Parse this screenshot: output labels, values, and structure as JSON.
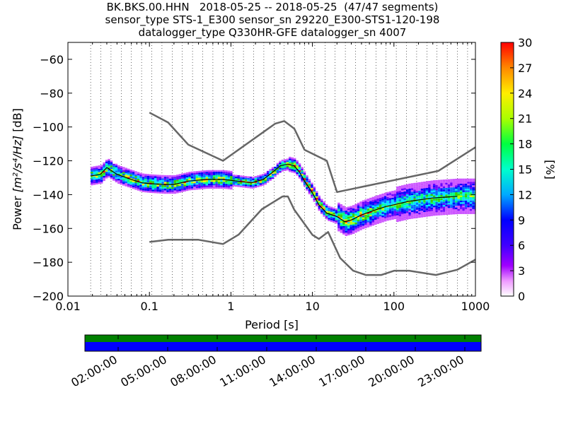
{
  "chart_data": [
    {
      "type": "heatmap",
      "title_lines": [
        "BK.BKS.00.HHN   2018-05-25 -- 2018-05-25  (47/47 segments)",
        "sensor_type STS-1_E300 sensor_sn 29220_E300-STS1-120-198",
        "datalogger_type Q330HR-GFE datalogger_sn 4007"
      ],
      "xlabel": "Period [s]",
      "ylabel_main": "Power ",
      "ylabel_units": "[m²/s⁴/Hz]",
      "ylabel_tail": " [dB]",
      "xscale": "log",
      "xlim": [
        0.01,
        1000
      ],
      "ylim": [
        -200,
        -50
      ],
      "xtick_values": [
        0.01,
        0.1,
        1,
        10,
        100,
        1000
      ],
      "xtick_labels": [
        "0.01",
        "0.1",
        "1",
        "10",
        "100",
        "1000"
      ],
      "ytick_values": [
        -200,
        -180,
        -160,
        -140,
        -120,
        -100,
        -80,
        -60
      ],
      "ytick_labels": [
        "−200",
        "−180",
        "−160",
        "−140",
        "−120",
        "−100",
        "−80",
        "−60"
      ],
      "grid": "dotted vertical grid at each period column",
      "colorbar": {
        "label": "[%]",
        "range": [
          0,
          30
        ],
        "tick_values": [
          0,
          3,
          6,
          9,
          12,
          15,
          18,
          21,
          24,
          27,
          30
        ],
        "tick_labels": [
          "0",
          "3",
          "6",
          "9",
          "12",
          "15",
          "18",
          "21",
          "24",
          "27",
          "30"
        ],
        "colors": [
          "#ffffff",
          "#cc55ff",
          "#6a00ff",
          "#0000ff",
          "#0066ff",
          "#00e0ff",
          "#00ff80",
          "#30d000",
          "#b8ff00",
          "#ffee00",
          "#ff7f00",
          "#ff0000"
        ]
      },
      "high_noise_model": {
        "periods": [
          0.1,
          0.17,
          0.3,
          0.8,
          3.5,
          4.5,
          6,
          8,
          15,
          20,
          350,
          1000
        ],
        "db": [
          -91.5,
          -97.4,
          -110.5,
          -120,
          -98,
          -96.5,
          -101,
          -113.5,
          -120,
          -138.5,
          -126,
          -112
        ]
      },
      "low_noise_model": {
        "periods": [
          0.1,
          0.17,
          0.4,
          0.8,
          1.24,
          2.4,
          4.3,
          5,
          6,
          10,
          12,
          15.6,
          21.9,
          31.6,
          45,
          70,
          101,
          154,
          328,
          600,
          1000
        ],
        "db": [
          -168,
          -166.7,
          -166.7,
          -169.2,
          -163.7,
          -148.6,
          -141.1,
          -141.1,
          -149,
          -163.8,
          -166.2,
          -162.1,
          -177.5,
          -185,
          -187.5,
          -187.5,
          -185,
          -185,
          -187.5,
          -184.4,
          -178.4
        ]
      },
      "mode_curve": {
        "periods": [
          0.019,
          0.025,
          0.03,
          0.04,
          0.06,
          0.08,
          0.1,
          0.15,
          0.2,
          0.3,
          0.5,
          0.8,
          1.2,
          1.8,
          2.5,
          3.2,
          4,
          5,
          6,
          7,
          8,
          10,
          12,
          15,
          20,
          25,
          30,
          40,
          60,
          80,
          100,
          150,
          300,
          600
        ],
        "db": [
          -129,
          -128,
          -124,
          -128,
          -131,
          -133,
          -133.5,
          -134,
          -134,
          -132,
          -131,
          -131,
          -132,
          -133,
          -131,
          -127,
          -123,
          -122,
          -123,
          -127,
          -132,
          -139,
          -146,
          -151,
          -153,
          -156,
          -155,
          -152,
          -149,
          -147,
          -146,
          -144,
          -142,
          -141
        ]
      },
      "timeline": {
        "tick_labels": [
          "02:00:00",
          "05:00:00",
          "08:00:00",
          "11:00:00",
          "14:00:00",
          "17:00:00",
          "20:00:00",
          "23:00:00"
        ],
        "bars": [
          "data available",
          "gaps/overlaps none"
        ]
      }
    }
  ],
  "colors": {
    "noise_model": "#666666",
    "mode": "#000000",
    "timeline_top": "#008000",
    "timeline_bottom": "#0000ff"
  }
}
